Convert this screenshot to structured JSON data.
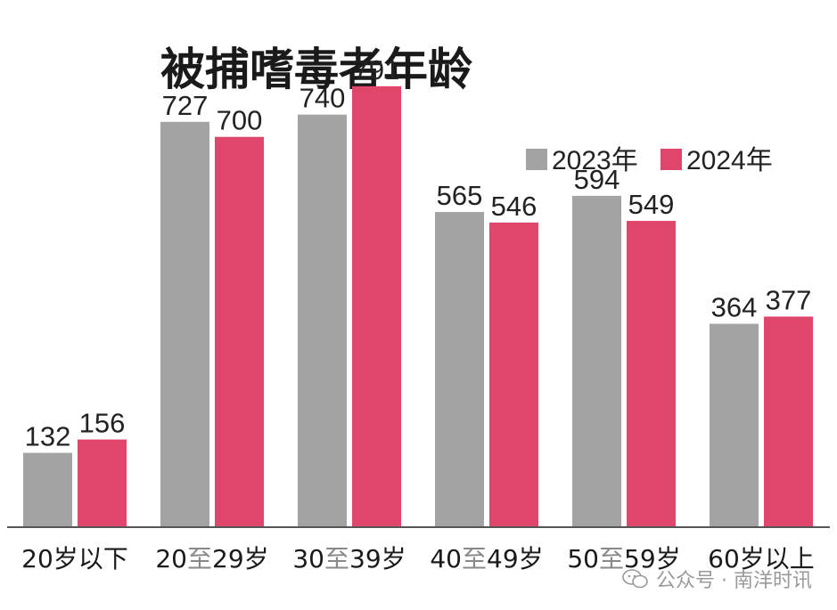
{
  "chart_data": {
    "type": "bar",
    "title": "被捕嗜毒者年龄",
    "categories": [
      "20岁以下",
      "20至29岁",
      "30至39岁",
      "40至49岁",
      "50至59岁",
      "60岁以上"
    ],
    "series": [
      {
        "name": "2023年",
        "color": "#a3a3a3",
        "values": [
          132,
          727,
          740,
          565,
          594,
          364
        ]
      },
      {
        "name": "2024年",
        "color": "#e0456b",
        "values": [
          156,
          700,
          791,
          546,
          549,
          377
        ]
      }
    ],
    "ylim": [
      0,
      850
    ],
    "grid": false,
    "legend": "top-right"
  },
  "watermark": {
    "text": "公众号 · 南洋时讯",
    "icon": "wechat-icon"
  }
}
